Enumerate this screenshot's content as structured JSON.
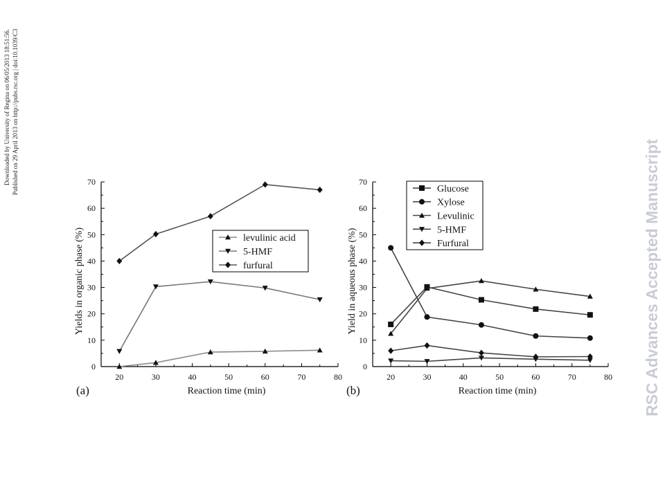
{
  "side_note": {
    "line1": "Downloaded by University of Regina on 06/05/2013 18:51:56.",
    "line2": "Published on 29 April 2013 on http://pubs.rsc.org | doi:10.1039/C3"
  },
  "watermark": "RSC Advances Accepted Manuscript",
  "chart_data": [
    {
      "type": "line",
      "panel_label": "(a)",
      "xlabel": "Reaction time (min)",
      "ylabel": "Yields in organic phase (%)",
      "xlim": [
        15,
        80
      ],
      "ylim": [
        0,
        70
      ],
      "x_ticks": [
        20,
        30,
        40,
        50,
        60,
        70,
        80
      ],
      "y_ticks": [
        0,
        10,
        20,
        30,
        40,
        50,
        60,
        70
      ],
      "legend_position": "center-right",
      "grid": false,
      "x": [
        20,
        30,
        45,
        60,
        75
      ],
      "series": [
        {
          "name": "levulinic acid",
          "marker": "triangle-up",
          "color": "#888888",
          "values": [
            0.0,
            1.5,
            5.5,
            5.8,
            6.2
          ]
        },
        {
          "name": "5-HMF",
          "marker": "triangle-down",
          "color": "#777777",
          "values": [
            5.8,
            30.3,
            32.2,
            29.8,
            25.4
          ]
        },
        {
          "name": "furfural",
          "marker": "diamond",
          "color": "#555555",
          "values": [
            40.0,
            50.2,
            57.0,
            69.0,
            67.0
          ]
        }
      ]
    },
    {
      "type": "line",
      "panel_label": "(b)",
      "xlabel": "Reaction time (min)",
      "ylabel": "Yield in aqueous phase (%)",
      "xlim": [
        15,
        80
      ],
      "ylim": [
        0,
        70
      ],
      "x_ticks": [
        20,
        30,
        40,
        50,
        60,
        70,
        80
      ],
      "y_ticks": [
        0,
        10,
        20,
        30,
        40,
        50,
        60,
        70
      ],
      "legend_position": "top-left",
      "grid": false,
      "x": [
        20,
        30,
        45,
        60,
        75
      ],
      "series": [
        {
          "name": "Glucose",
          "marker": "square",
          "color": "#444444",
          "values": [
            16.0,
            30.2,
            25.3,
            21.8,
            19.6
          ]
        },
        {
          "name": "Xylose",
          "marker": "circle",
          "color": "#444444",
          "values": [
            45.0,
            18.8,
            15.8,
            11.6,
            10.8
          ]
        },
        {
          "name": "Levulinic",
          "marker": "triangle-up",
          "color": "#444444",
          "values": [
            12.5,
            29.6,
            32.5,
            29.3,
            26.6
          ]
        },
        {
          "name": "5-HMF",
          "marker": "triangle-down",
          "color": "#444444",
          "values": [
            2.2,
            2.0,
            3.3,
            2.8,
            2.4
          ]
        },
        {
          "name": "Furfural",
          "marker": "diamond",
          "color": "#444444",
          "values": [
            6.0,
            8.0,
            5.2,
            3.7,
            3.8
          ]
        }
      ]
    }
  ]
}
